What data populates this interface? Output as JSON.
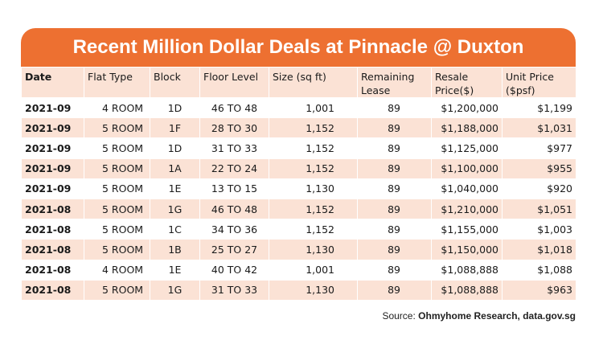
{
  "title": "Recent Million Dollar Deals at Pinnacle @ Duxton",
  "columns": [
    "Date",
    "Flat Type",
    "Block",
    "Floor Level",
    "Size (sq ft)",
    "Remaining Lease",
    "Resale Price($)",
    "Unit Price ($psf)"
  ],
  "rows": [
    [
      "2021-09",
      "4 ROOM",
      "1D",
      "46 TO 48",
      "1,001",
      "89",
      "$1,200,000",
      "$1,199"
    ],
    [
      "2021-09",
      "5 ROOM",
      "1F",
      "28 TO 30",
      "1,152",
      "89",
      "$1,188,000",
      "$1,031"
    ],
    [
      "2021-09",
      "5 ROOM",
      "1D",
      "31 TO 33",
      "1,152",
      "89",
      "$1,125,000",
      "$977"
    ],
    [
      "2021-09",
      "5 ROOM",
      "1A",
      "22 TO 24",
      "1,152",
      "89",
      "$1,100,000",
      "$955"
    ],
    [
      "2021-09",
      "5 ROOM",
      "1E",
      "13 TO 15",
      "1,130",
      "89",
      "$1,040,000",
      "$920"
    ],
    [
      "2021-08",
      "5 ROOM",
      "1G",
      "46 TO 48",
      "1,152",
      "89",
      "$1,210,000",
      "$1,051"
    ],
    [
      "2021-08",
      "5 ROOM",
      "1C",
      "34 TO 36",
      "1,152",
      "89",
      "$1,155,000",
      "$1,003"
    ],
    [
      "2021-08",
      "5 ROOM",
      "1B",
      "25 TO 27",
      "1,130",
      "89",
      "$1,150,000",
      "$1,018"
    ],
    [
      "2021-08",
      "4 ROOM",
      "1E",
      "40 TO 42",
      "1,001",
      "89",
      "$1,088,888",
      "$1,088"
    ],
    [
      "2021-08",
      "5 ROOM",
      "1G",
      "31 TO 33",
      "1,130",
      "89",
      "$1,088,888",
      "$963"
    ]
  ],
  "source": {
    "prefix": "Source: ",
    "text": "Ohmyhome Research, data.gov.sg"
  },
  "colors": {
    "banner": "#ed7031",
    "row_shade": "#fbe2d5"
  }
}
